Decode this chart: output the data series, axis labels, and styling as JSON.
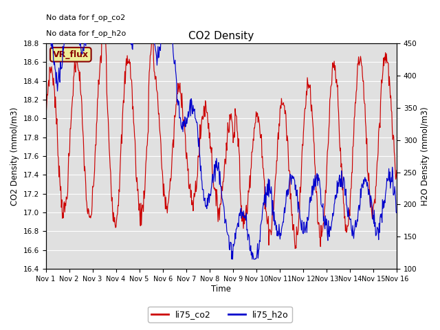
{
  "title": "CO2 Density",
  "xlabel": "Time",
  "ylabel_left": "CO2 Density (mmol/m3)",
  "ylabel_right": "H2O Density (mmol/m3)",
  "ylim_left": [
    16.4,
    18.8
  ],
  "ylim_right": [
    100,
    450
  ],
  "xtick_labels": [
    "Nov 1",
    "Nov 2",
    "Nov 3",
    "Nov 4",
    "Nov 5",
    "Nov 6",
    "Nov 7",
    "Nov 8",
    "Nov 9",
    "Nov 10",
    "Nov 11",
    "Nov 12",
    "Nov 13",
    "Nov 14",
    "Nov 15",
    "Nov 16"
  ],
  "annotation1": "No data for f_op_co2",
  "annotation2": "No data for f_op_h2o",
  "vr_flux_label": "VR_flux",
  "legend_labels": [
    "li75_co2",
    "li75_h2o"
  ],
  "line_color_co2": "#cc0000",
  "line_color_h2o": "#0000cc",
  "bg_color": "#e0e0e0",
  "vr_flux_bg": "#eeee99",
  "vr_flux_border": "#880000",
  "figsize": [
    6.4,
    4.8
  ],
  "dpi": 100
}
